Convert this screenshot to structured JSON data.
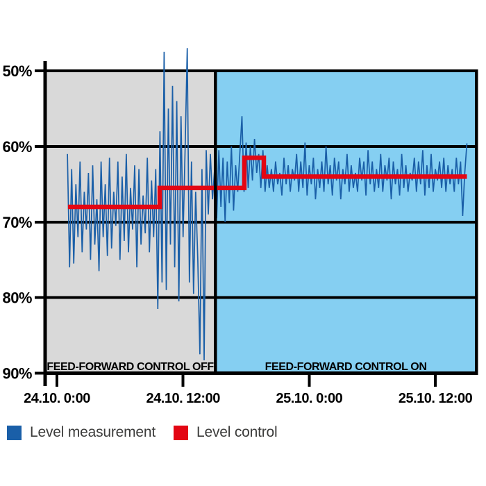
{
  "legend": {
    "items": [
      {
        "label": "Level measurement",
        "color": "#1a5fa8"
      },
      {
        "label": "Level control",
        "color": "#e30613"
      }
    ]
  },
  "chart_data": {
    "type": "line",
    "title": "",
    "xlabel": "",
    "ylabel": "",
    "grid": true,
    "legend_position": "bottom-left",
    "y_axis": {
      "unit": "%",
      "range": [
        50,
        90
      ],
      "inverted": true,
      "ticks": [
        {
          "v": 50,
          "label": "50%"
        },
        {
          "v": 60,
          "label": "60%"
        },
        {
          "v": 70,
          "label": "70%"
        },
        {
          "v": 80,
          "label": "80%"
        },
        {
          "v": 90,
          "label": "90%"
        }
      ]
    },
    "x_axis": {
      "unit": "hours from 24.10. 0:00",
      "range_hours": [
        -1.35,
        40.05
      ],
      "ticks": [
        {
          "t": 0,
          "label": "24.10. 0:00"
        },
        {
          "t": 12,
          "label": "24.10. 12:00"
        },
        {
          "t": 24,
          "label": "25.10. 0:00"
        },
        {
          "t": 36,
          "label": "25.10. 12:00"
        }
      ]
    },
    "regions": [
      {
        "label": "FEED-FORWARD CONTROL OFF",
        "t_start": -1.35,
        "t_end": 15.07,
        "color": "#d9d9d9"
      },
      {
        "label": "FEED-FORWARD CONTROL ON",
        "t_start": 15.07,
        "t_end": 40.05,
        "color": "#85cff2"
      }
    ],
    "series": [
      {
        "name": "Level measurement",
        "color": "#1a5fa8",
        "width": 1.7,
        "t0": 1.0,
        "dt": 0.2,
        "values": [
          61,
          76,
          63,
          75.5,
          65,
          72,
          62,
          74,
          66,
          71,
          63.5,
          75,
          62.5,
          73,
          67,
          76.5,
          62,
          72,
          65,
          74.5,
          61.5,
          73.5,
          66,
          70.5,
          62,
          75,
          64,
          72.5,
          61,
          74,
          65.5,
          71,
          62.5,
          76,
          63,
          73,
          66.5,
          71.5,
          61.5,
          74,
          64.5,
          72,
          63,
          81.5,
          58,
          78,
          47.5,
          79,
          55,
          73,
          52,
          76,
          54,
          80.5,
          56,
          72,
          60,
          47,
          78,
          62,
          79.5,
          66,
          75,
          87.5,
          63,
          88.3,
          60.5,
          69,
          61,
          67,
          63,
          69.5,
          60.5,
          68,
          61.5,
          70,
          62,
          67.5,
          60,
          68.5,
          62.5,
          66,
          61,
          56,
          66,
          59.5,
          65.5,
          60,
          64.5,
          59,
          63.5,
          61,
          65.5,
          60.5,
          66,
          62.5,
          65.5,
          63,
          66,
          62,
          65,
          63.5,
          66.5,
          61.5,
          65,
          62.5,
          66,
          63,
          64.5,
          61,
          66,
          62,
          65.5,
          59.5,
          66.5,
          62.5,
          65,
          61.5,
          67,
          63,
          65.5,
          62,
          66,
          60,
          65,
          62.5,
          66.5,
          61.5,
          64.5,
          62,
          67,
          63,
          65,
          61,
          66,
          62.5,
          65.5,
          63.5,
          66,
          61.5,
          64.5,
          62,
          66.5,
          60.5,
          65,
          62,
          66,
          63,
          65.5,
          61,
          66,
          62.5,
          64.5,
          61.5,
          67,
          62,
          65,
          63,
          66.5,
          61,
          65.5,
          62.5,
          66,
          63.5,
          64.5,
          61.5,
          66,
          62,
          65,
          60.5,
          66.5,
          62.5,
          65.5,
          61,
          66,
          63,
          64.5,
          62,
          65.5,
          61.5,
          66,
          62.5,
          65,
          63,
          66,
          61.5,
          65,
          62,
          69.2,
          63.5,
          59.6
        ]
      },
      {
        "name": "Level control",
        "color": "#e30613",
        "width": 6.5,
        "points": [
          [
            1.05,
            68
          ],
          [
            9.78,
            68
          ],
          [
            9.78,
            65.5
          ],
          [
            17.83,
            65.5
          ],
          [
            17.83,
            61.5
          ],
          [
            19.68,
            61.5
          ],
          [
            19.68,
            64
          ],
          [
            39.0,
            64
          ]
        ]
      }
    ]
  }
}
